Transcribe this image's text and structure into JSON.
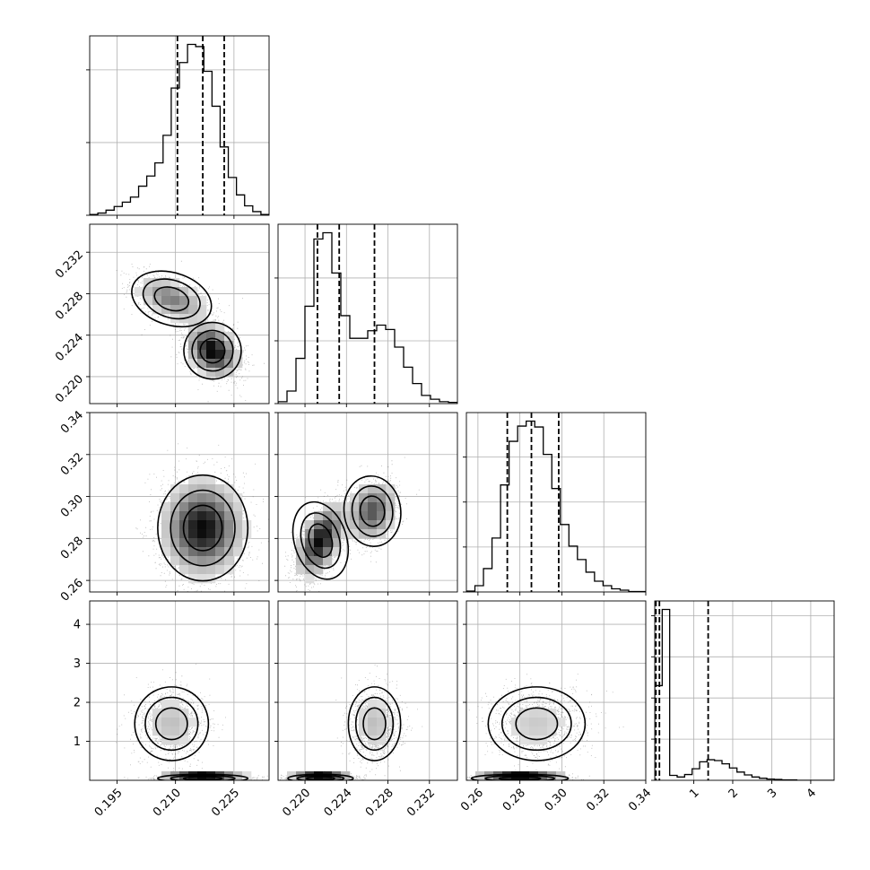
{
  "chart_data": {
    "type": "corner",
    "description_kind": "corner plot of 4 parameters: 1D marginal histograms on the diagonal, 2D sample scatter with density shading and contours below the diagonal",
    "parameters": [
      {
        "index": 0,
        "range": [
          0.188,
          0.234
        ],
        "ticks": [
          0.195,
          0.21,
          0.225
        ],
        "tick_labels": [
          "0.195",
          "0.210",
          "0.225"
        ],
        "quantiles": [
          0.2105,
          0.217,
          0.2225
        ]
      },
      {
        "index": 1,
        "range": [
          0.2174,
          0.2347
        ],
        "ticks": [
          0.22,
          0.224,
          0.228,
          0.232
        ],
        "tick_labels": [
          "0.220",
          "0.224",
          "0.228",
          "0.232"
        ],
        "quantiles": [
          0.2212,
          0.2233,
          0.2267
        ]
      },
      {
        "index": 2,
        "range": [
          0.2545,
          0.34
        ],
        "ticks": [
          0.26,
          0.28,
          0.3,
          0.32,
          0.34
        ],
        "tick_labels": [
          "0.26",
          "0.28",
          "0.30",
          "0.32",
          "0.34"
        ],
        "quantiles": [
          0.274,
          0.2855,
          0.2985
        ]
      },
      {
        "index": 3,
        "range": [
          0.0,
          4.6
        ],
        "ticks": [
          1,
          2,
          3,
          4
        ],
        "tick_labels": [
          "1",
          "2",
          "3",
          "4"
        ],
        "quantiles": [
          0.03,
          0.12,
          1.37
        ]
      }
    ],
    "marginal_histograms": [
      {
        "param": 0,
        "counts": [
          1,
          3,
          7,
          12,
          18,
          25,
          40,
          54,
          72,
          110,
          175,
          210,
          235,
          232,
          198,
          150,
          94,
          52,
          28,
          13,
          5,
          1
        ]
      },
      {
        "param": 1,
        "counts": [
          3,
          20,
          72,
          155,
          262,
          272,
          208,
          140,
          104,
          104,
          116,
          125,
          118,
          90,
          58,
          32,
          13,
          7,
          3,
          2
        ]
      },
      {
        "param": 2,
        "counts": [
          2,
          14,
          52,
          120,
          238,
          335,
          369,
          380,
          367,
          306,
          230,
          150,
          102,
          72,
          44,
          24,
          14,
          7,
          4,
          1,
          1
        ]
      },
      {
        "param": 3,
        "counts": [
          230,
          415,
          12,
          8,
          14,
          28,
          45,
          50,
          48,
          40,
          30,
          20,
          13,
          8,
          5,
          3,
          2,
          1,
          1,
          0,
          0,
          0,
          0,
          0
        ]
      }
    ],
    "joint_modes": [
      {
        "pair": [
          0,
          1
        ],
        "modes": [
          {
            "center": [
              0.2195,
              0.2225
            ],
            "spread": [
              0.0035,
              0.0013
            ],
            "weight": 0.6,
            "corr": -0.3
          },
          {
            "center": [
              0.209,
              0.2275
            ],
            "spread": [
              0.005,
              0.0012
            ],
            "weight": 0.4,
            "corr": -0.5
          }
        ]
      },
      {
        "pair": [
          0,
          2
        ],
        "modes": [
          {
            "center": [
              0.217,
              0.285
            ],
            "spread": [
              0.0055,
              0.012
            ],
            "weight": 1.0,
            "corr": 0.0
          }
        ]
      },
      {
        "pair": [
          1,
          2
        ],
        "modes": [
          {
            "center": [
              0.2215,
              0.279
            ],
            "spread": [
              0.0012,
              0.009
            ],
            "weight": 0.6,
            "corr": 0.5
          },
          {
            "center": [
              0.2265,
              0.293
            ],
            "spread": [
              0.0013,
              0.008
            ],
            "weight": 0.4,
            "corr": 0.2
          }
        ]
      },
      {
        "pair": [
          0,
          3
        ],
        "modes": [
          {
            "center": [
              0.217,
              0.05
            ],
            "spread": [
              0.0055,
              0.05
            ],
            "weight": 0.55,
            "corr": 0.0
          },
          {
            "center": [
              0.209,
              1.45
            ],
            "spread": [
              0.0045,
              0.45
            ],
            "weight": 0.45,
            "corr": 0.0
          }
        ]
      },
      {
        "pair": [
          1,
          3
        ],
        "modes": [
          {
            "center": [
              0.2215,
              0.05
            ],
            "spread": [
              0.0015,
              0.05
            ],
            "weight": 0.55,
            "corr": 0.0
          },
          {
            "center": [
              0.2267,
              1.45
            ],
            "spread": [
              0.0012,
              0.45
            ],
            "weight": 0.45,
            "corr": 0.0
          }
        ]
      },
      {
        "pair": [
          2,
          3
        ],
        "modes": [
          {
            "center": [
              0.28,
              0.05
            ],
            "spread": [
              0.011,
              0.05
            ],
            "weight": 0.55,
            "corr": 0.0
          },
          {
            "center": [
              0.288,
              1.45
            ],
            "spread": [
              0.011,
              0.45
            ],
            "weight": 0.45,
            "corr": 0.0
          }
        ]
      }
    ],
    "grid": true,
    "colors": {
      "line": "#000000",
      "grid": "#b0b0b0",
      "points": "#000000"
    }
  }
}
